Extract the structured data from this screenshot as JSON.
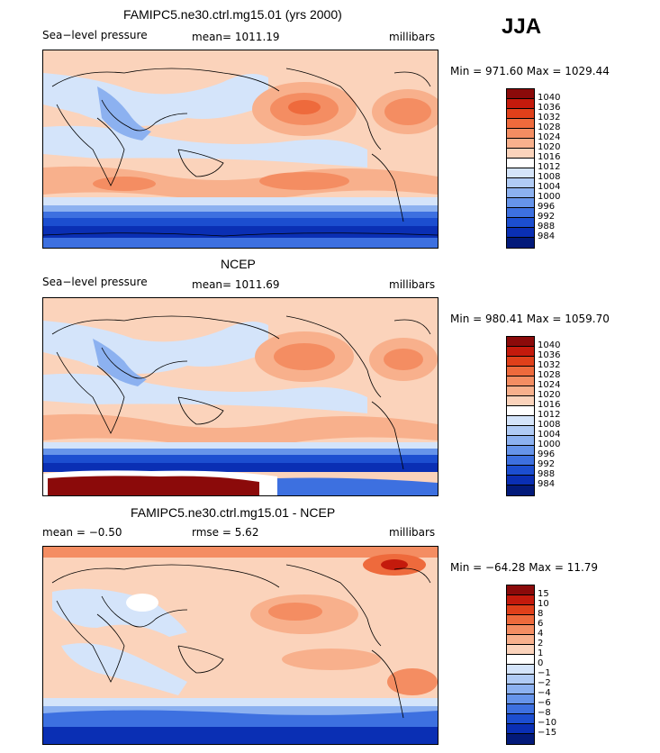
{
  "season": "JJA",
  "panels": [
    {
      "title": "FAMIPC5.ne30.ctrl.mg15.01 (yrs 2000)",
      "left_label": "Sea−level pressure",
      "mid_label": "mean=  1011.19",
      "units": "millibars",
      "minmax": "Min =  971.60  Max =  1029.44",
      "levels": [
        "1040",
        "1036",
        "1032",
        "1028",
        "1024",
        "1020",
        "1016",
        "1012",
        "1008",
        "1004",
        "1000",
        "996",
        "992",
        "988",
        "984"
      ]
    },
    {
      "title": "NCEP",
      "left_label": "Sea−level pressure",
      "mid_label": "mean=  1011.69",
      "units": "millibars",
      "minmax": "Min =  980.41  Max =  1059.70",
      "levels": [
        "1040",
        "1036",
        "1032",
        "1028",
        "1024",
        "1020",
        "1016",
        "1012",
        "1008",
        "1004",
        "1000",
        "996",
        "992",
        "988",
        "984"
      ]
    },
    {
      "title": "FAMIPC5.ne30.ctrl.mg15.01 - NCEP",
      "left_label": "mean =   −0.50",
      "mid_label": "rmse =    5.62",
      "units": "millibars",
      "minmax": "Min = −64.28  Max =   11.79",
      "levels": [
        "15",
        "10",
        "8",
        "6",
        "4",
        "2",
        "1",
        "0",
        "−1",
        "−2",
        "−4",
        "−6",
        "−8",
        "−10",
        "−15"
      ]
    }
  ],
  "colors": [
    "#8b0a0a",
    "#c41a0c",
    "#e0401a",
    "#ee6a3c",
    "#f48d62",
    "#f8b08c",
    "#fbd3bb",
    "#ffffff",
    "#d4e4fa",
    "#b0cbf5",
    "#8cb1f0",
    "#6694ea",
    "#3d70e0",
    "#1c4ed0",
    "#0a2fb4",
    "#031a7a"
  ]
}
